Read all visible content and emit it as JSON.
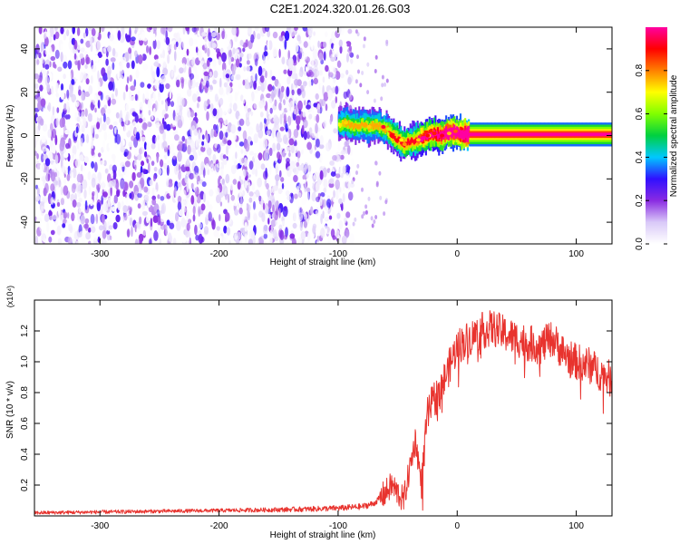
{
  "title": "C2E1.2024.320.01.26.G03",
  "chart_data": [
    {
      "type": "heatmap",
      "xlabel": "Height of straight line (km)",
      "ylabel": "Frequency (Hz)",
      "xlim": [
        -355,
        130
      ],
      "ylim": [
        -50,
        50
      ],
      "xticks": [
        -300,
        -200,
        -100,
        0,
        100
      ],
      "yticks": [
        -40,
        -20,
        0,
        20,
        40
      ],
      "colorbar": {
        "label": "Normalized spectral amplitude",
        "range": [
          0,
          1
        ],
        "ticks": [
          0.0,
          0.2,
          0.4,
          0.6,
          0.8
        ],
        "tick_labels": [
          "0.0",
          "0.2",
          "0.4",
          "0.6",
          "0.8"
        ],
        "colors": [
          "#ffffff",
          "#d9c9f8",
          "#8a2be2",
          "#3010ff",
          "#00c8ff",
          "#00d040",
          "#80ff00",
          "#ffff00",
          "#ff8000",
          "#ff0000",
          "#ff00a0"
        ]
      },
      "noise_region": {
        "x": [
          -355,
          -88
        ],
        "frequency": [
          -50,
          50
        ],
        "amplitude": [
          0.0,
          0.3
        ]
      },
      "signal_track": [
        {
          "x": -100,
          "f": 5,
          "a": 0.45
        },
        {
          "x": -95,
          "f": 6,
          "a": 0.5
        },
        {
          "x": -90,
          "f": 5,
          "a": 0.5
        },
        {
          "x": -85,
          "f": 4,
          "a": 0.5
        },
        {
          "x": -80,
          "f": 5,
          "a": 0.5
        },
        {
          "x": -75,
          "f": 4,
          "a": 0.5
        },
        {
          "x": -70,
          "f": 5,
          "a": 0.5
        },
        {
          "x": -65,
          "f": 4,
          "a": 0.5
        },
        {
          "x": -60,
          "f": 3,
          "a": 0.5
        },
        {
          "x": -55,
          "f": 0,
          "a": 0.6
        },
        {
          "x": -50,
          "f": -2,
          "a": 0.6
        },
        {
          "x": -45,
          "f": -4,
          "a": 0.6
        },
        {
          "x": -40,
          "f": -3,
          "a": 0.6
        },
        {
          "x": -35,
          "f": -2,
          "a": 0.6
        },
        {
          "x": -30,
          "f": -1,
          "a": 0.7
        },
        {
          "x": -25,
          "f": 0,
          "a": 0.7
        },
        {
          "x": -20,
          "f": 1,
          "a": 0.7
        },
        {
          "x": -15,
          "f": 0,
          "a": 0.75
        },
        {
          "x": -10,
          "f": 1,
          "a": 0.8
        },
        {
          "x": -5,
          "f": 2,
          "a": 0.8
        },
        {
          "x": 0,
          "f": 1,
          "a": 0.8
        },
        {
          "x": 5,
          "f": 0.5,
          "a": 0.9
        },
        {
          "x": 10,
          "f": 0.5,
          "a": 1.0
        },
        {
          "x": 130,
          "f": 0.5,
          "a": 1.0
        }
      ]
    },
    {
      "type": "line",
      "xlabel": "Height of straight line (km)",
      "ylabel": "SNR (10 * v/v)",
      "y_multiplier": "(x10⁴)",
      "xlim": [
        -355,
        130
      ],
      "ylim": [
        0,
        1.4
      ],
      "xticks": [
        -300,
        -200,
        -100,
        0,
        100
      ],
      "yticks": [
        0.2,
        0.4,
        0.6,
        0.8,
        1.0,
        1.2
      ],
      "ytick_labels": [
        "0.2",
        "0.4",
        "0.6",
        "0.8",
        "1.0",
        "1.2"
      ],
      "color": "#e8332e",
      "series": [
        {
          "x": [
            -355,
            -300,
            -250,
            -200,
            -150,
            -120,
            -100,
            -80,
            -70,
            -60,
            -55,
            -50,
            -45,
            -40,
            -35,
            -30,
            -25,
            -20,
            -15,
            -10,
            -5,
            0,
            10,
            20,
            30,
            40,
            50,
            60,
            70,
            80,
            90,
            100,
            110,
            120,
            130
          ],
          "y": [
            0.02,
            0.025,
            0.03,
            0.035,
            0.04,
            0.045,
            0.05,
            0.06,
            0.08,
            0.15,
            0.2,
            0.15,
            0.1,
            0.3,
            0.5,
            0.2,
            0.65,
            0.75,
            0.8,
            0.9,
            1.0,
            1.1,
            1.15,
            1.2,
            1.22,
            1.18,
            1.15,
            1.12,
            1.1,
            1.15,
            1.05,
            1.0,
            0.98,
            0.93,
            0.88
          ]
        }
      ]
    }
  ]
}
